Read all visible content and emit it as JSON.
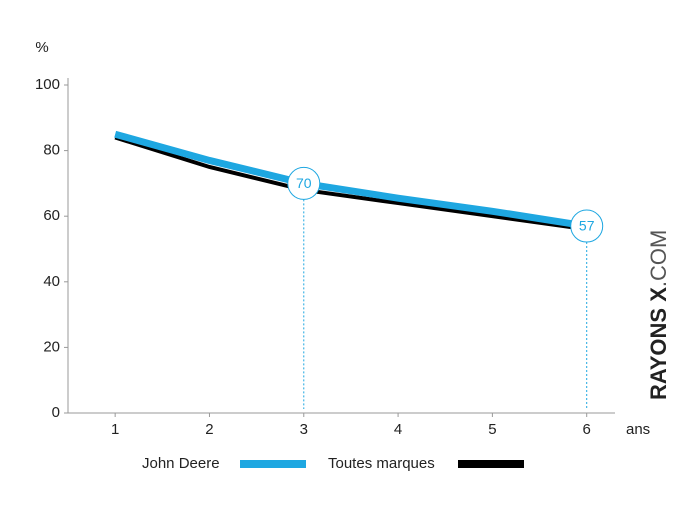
{
  "chart_data": {
    "type": "line",
    "y_label": "%",
    "x_label": "ans",
    "x": [
      1,
      2,
      3,
      4,
      5,
      6
    ],
    "xlim": [
      0.5,
      6.3
    ],
    "xticks": [
      1,
      2,
      3,
      4,
      5,
      6
    ],
    "ylim": [
      0,
      100
    ],
    "yticks": [
      0,
      20,
      40,
      60,
      80,
      100
    ],
    "series": [
      {
        "name": "Toutes marques",
        "color": "#000000",
        "values": [
          84,
          75,
          68,
          64,
          60,
          56
        ]
      },
      {
        "name": "John Deere",
        "color": "#1ea7e1",
        "values": [
          85,
          77,
          70,
          65.5,
          61.5,
          57
        ]
      }
    ],
    "annotations": [
      {
        "x": 3,
        "value": 70
      },
      {
        "x": 6,
        "value": 57
      }
    ],
    "watermark": [
      "RAYONS X",
      ".COM"
    ]
  }
}
